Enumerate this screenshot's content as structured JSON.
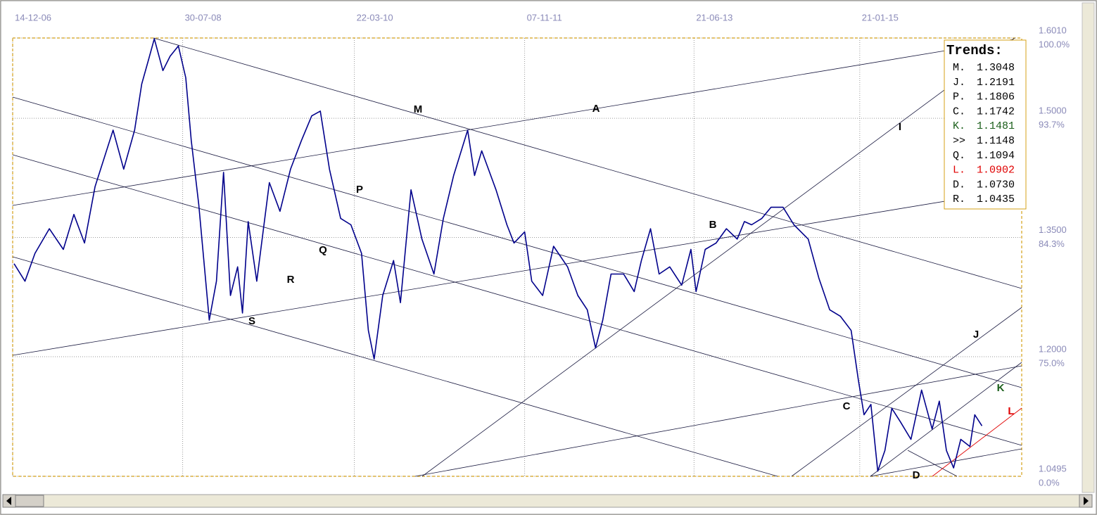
{
  "chart_data": {
    "type": "line",
    "xlim": [
      "2006-12-14",
      "2016-08-09"
    ],
    "xticks": [
      {
        "value": "2006-12-14",
        "label": "14-12-06"
      },
      {
        "value": "2008-07-30",
        "label": "30-07-08"
      },
      {
        "value": "2010-03-22",
        "label": "22-03-10"
      },
      {
        "value": "2011-11-07",
        "label": "07-11-11"
      },
      {
        "value": "2013-06-21",
        "label": "21-06-13"
      },
      {
        "value": "2015-01-21",
        "label": "21-01-15"
      }
    ],
    "ylim": [
      1.0495,
      1.601
    ],
    "yticks": [
      {
        "value": 1.601,
        "label": "1.6010"
      },
      {
        "value": 1.5,
        "label": "1.5000"
      },
      {
        "value": 1.35,
        "label": "1.3500"
      },
      {
        "value": 1.2,
        "label": "1.2000"
      },
      {
        "value": 1.0495,
        "label": "1.0495"
      }
    ],
    "ytick_percent_labels": [
      "100.0%",
      "93.7%",
      "84.3%",
      "75.0%",
      "0.0%"
    ],
    "grid": true,
    "series": [
      {
        "color": "#00008b",
        "x": [
          "2006-12-19",
          "2007-01-26",
          "2007-03-02",
          "2007-04-21",
          "2007-06-09",
          "2007-07-16",
          "2007-08-22",
          "2007-09-28",
          "2007-11-30",
          "2008-01-06",
          "2008-02-13",
          "2008-03-09",
          "2008-04-02",
          "2008-04-22",
          "2008-05-22",
          "2008-06-16",
          "2008-07-15",
          "2008-08-10",
          "2008-08-29",
          "2008-09-24",
          "2008-10-31",
          "2008-11-25",
          "2008-12-20",
          "2009-01-13",
          "2009-02-07",
          "2009-02-24",
          "2009-03-16",
          "2009-04-15",
          "2009-05-29",
          "2009-07-05",
          "2009-08-11",
          "2009-09-18",
          "2009-10-24",
          "2009-11-23",
          "2009-12-25",
          "2010-02-02",
          "2010-03-10",
          "2010-04-16",
          "2010-05-10",
          "2010-05-30",
          "2010-06-29",
          "2010-08-06",
          "2010-08-30",
          "2010-10-06",
          "2010-11-13",
          "2010-12-25",
          "2011-01-27",
          "2011-03-04",
          "2011-04-22",
          "2011-05-16",
          "2011-06-10",
          "2011-07-30",
          "2011-09-06",
          "2011-10-01",
          "2011-11-07",
          "2011-12-02",
          "2012-01-09",
          "2012-02-16",
          "2012-04-05",
          "2012-05-11",
          "2012-06-13",
          "2012-07-12",
          "2012-08-06",
          "2012-09-04",
          "2012-10-18",
          "2012-11-24",
          "2012-12-19",
          "2013-01-20",
          "2013-02-19",
          "2013-03-28",
          "2013-05-09",
          "2013-06-10",
          "2013-06-28",
          "2013-07-30",
          "2013-09-06",
          "2013-10-12",
          "2013-11-19",
          "2013-12-14",
          "2014-01-08",
          "2014-02-13",
          "2014-03-17",
          "2014-04-28",
          "2014-06-05",
          "2014-07-25",
          "2014-08-31",
          "2014-10-08",
          "2014-11-14",
          "2014-12-22",
          "2015-01-16",
          "2015-02-05",
          "2015-03-01",
          "2015-03-25",
          "2015-04-19",
          "2015-05-13",
          "2015-06-12",
          "2015-07-19",
          "2015-08-25",
          "2015-10-01",
          "2015-10-26",
          "2015-11-20",
          "2015-12-15",
          "2016-01-09",
          "2016-02-10",
          "2016-02-27",
          "2016-03-23"
        ],
        "values": [
          1.317,
          1.295,
          1.33,
          1.361,
          1.335,
          1.379,
          1.343,
          1.414,
          1.485,
          1.436,
          1.485,
          1.543,
          1.574,
          1.6,
          1.56,
          1.578,
          1.591,
          1.551,
          1.472,
          1.392,
          1.246,
          1.295,
          1.432,
          1.277,
          1.313,
          1.255,
          1.37,
          1.295,
          1.419,
          1.383,
          1.436,
          1.472,
          1.503,
          1.509,
          1.436,
          1.374,
          1.366,
          1.33,
          1.233,
          1.197,
          1.277,
          1.321,
          1.268,
          1.41,
          1.348,
          1.304,
          1.374,
          1.428,
          1.485,
          1.428,
          1.459,
          1.41,
          1.366,
          1.343,
          1.357,
          1.295,
          1.277,
          1.339,
          1.313,
          1.277,
          1.259,
          1.211,
          1.246,
          1.304,
          1.304,
          1.282,
          1.321,
          1.361,
          1.304,
          1.313,
          1.29,
          1.335,
          1.282,
          1.335,
          1.343,
          1.361,
          1.348,
          1.37,
          1.366,
          1.374,
          1.388,
          1.388,
          1.366,
          1.348,
          1.299,
          1.259,
          1.251,
          1.233,
          1.171,
          1.127,
          1.14,
          1.056,
          1.082,
          1.135,
          1.118,
          1.096,
          1.158,
          1.109,
          1.144,
          1.082,
          1.06,
          1.096,
          1.087,
          1.127,
          1.113
        ]
      }
    ],
    "annotations": [
      "M",
      "A",
      "I",
      "P",
      "Q",
      "R",
      "S",
      "B",
      "C",
      "J",
      "K",
      "L",
      "D"
    ],
    "trends": {
      "title": "Trends:",
      "rows": [
        {
          "label": "M.",
          "value": "1.3048"
        },
        {
          "label": "J.",
          "value": "1.2191"
        },
        {
          "label": "P.",
          "value": "1.1806"
        },
        {
          "label": "C.",
          "value": "1.1742"
        },
        {
          "label": "K.",
          "value": "1.1481",
          "color": "#1a5e1a"
        },
        {
          "label": ">>",
          "value": "1.1148"
        },
        {
          "label": "Q.",
          "value": "1.1094"
        },
        {
          "label": "L.",
          "value": "1.0902",
          "color": "#e00000"
        },
        {
          "label": "D.",
          "value": "1.0730"
        },
        {
          "label": "R.",
          "value": "1.0435"
        }
      ]
    }
  }
}
